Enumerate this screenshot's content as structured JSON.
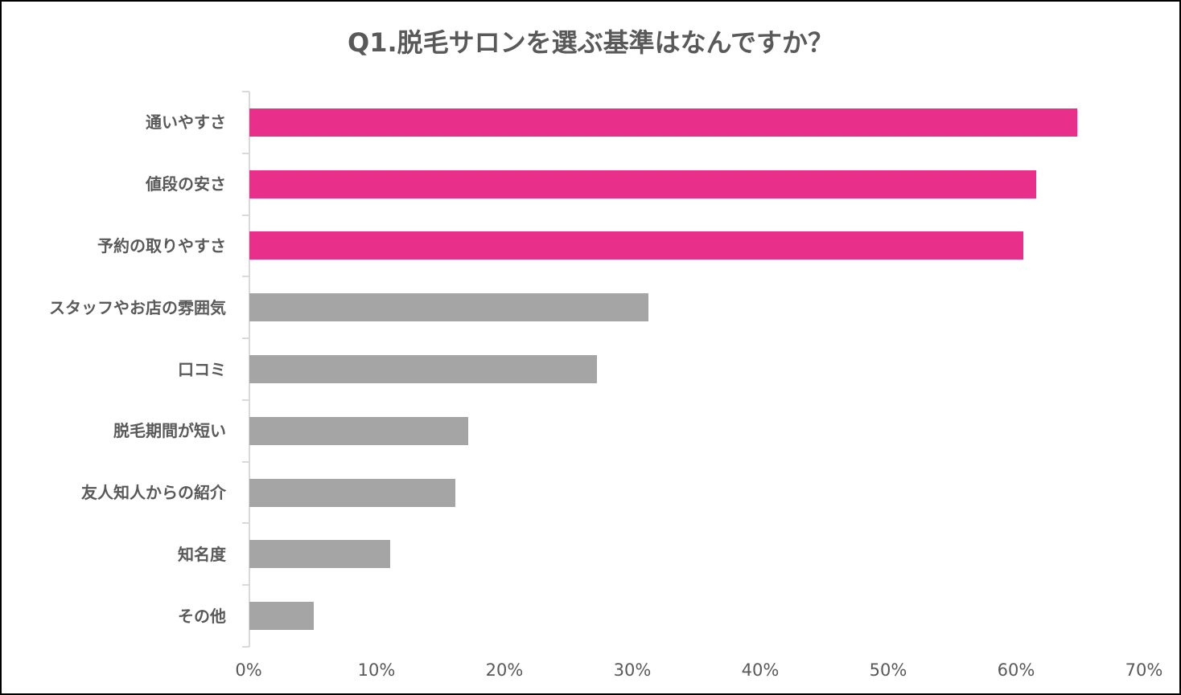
{
  "chart_data": {
    "type": "bar",
    "orientation": "horizontal",
    "title": "Q1.脱毛サロンを選ぶ基準はなんですか？",
    "categories": [
      "通いやすさ",
      "値段の安さ",
      "予約の取りやすさ",
      "スタッフやお店の雰囲気",
      "口コミ",
      "脱毛期間が短い",
      "友人知人からの紹介",
      "知名度",
      "その他"
    ],
    "values": [
      64.7,
      61.5,
      60.5,
      31.2,
      27.2,
      17.1,
      16.1,
      11.0,
      5.0
    ],
    "unit": "%",
    "highlight_count": 3,
    "colors": {
      "highlight": "#E8308A",
      "default": "#A5A5A5"
    },
    "xlabel": "",
    "ylabel": "",
    "xlim": [
      0,
      70
    ],
    "xticks": [
      "0%",
      "10%",
      "20%",
      "30%",
      "40%",
      "50%",
      "60%",
      "70%"
    ],
    "grid": false,
    "legend": null
  }
}
